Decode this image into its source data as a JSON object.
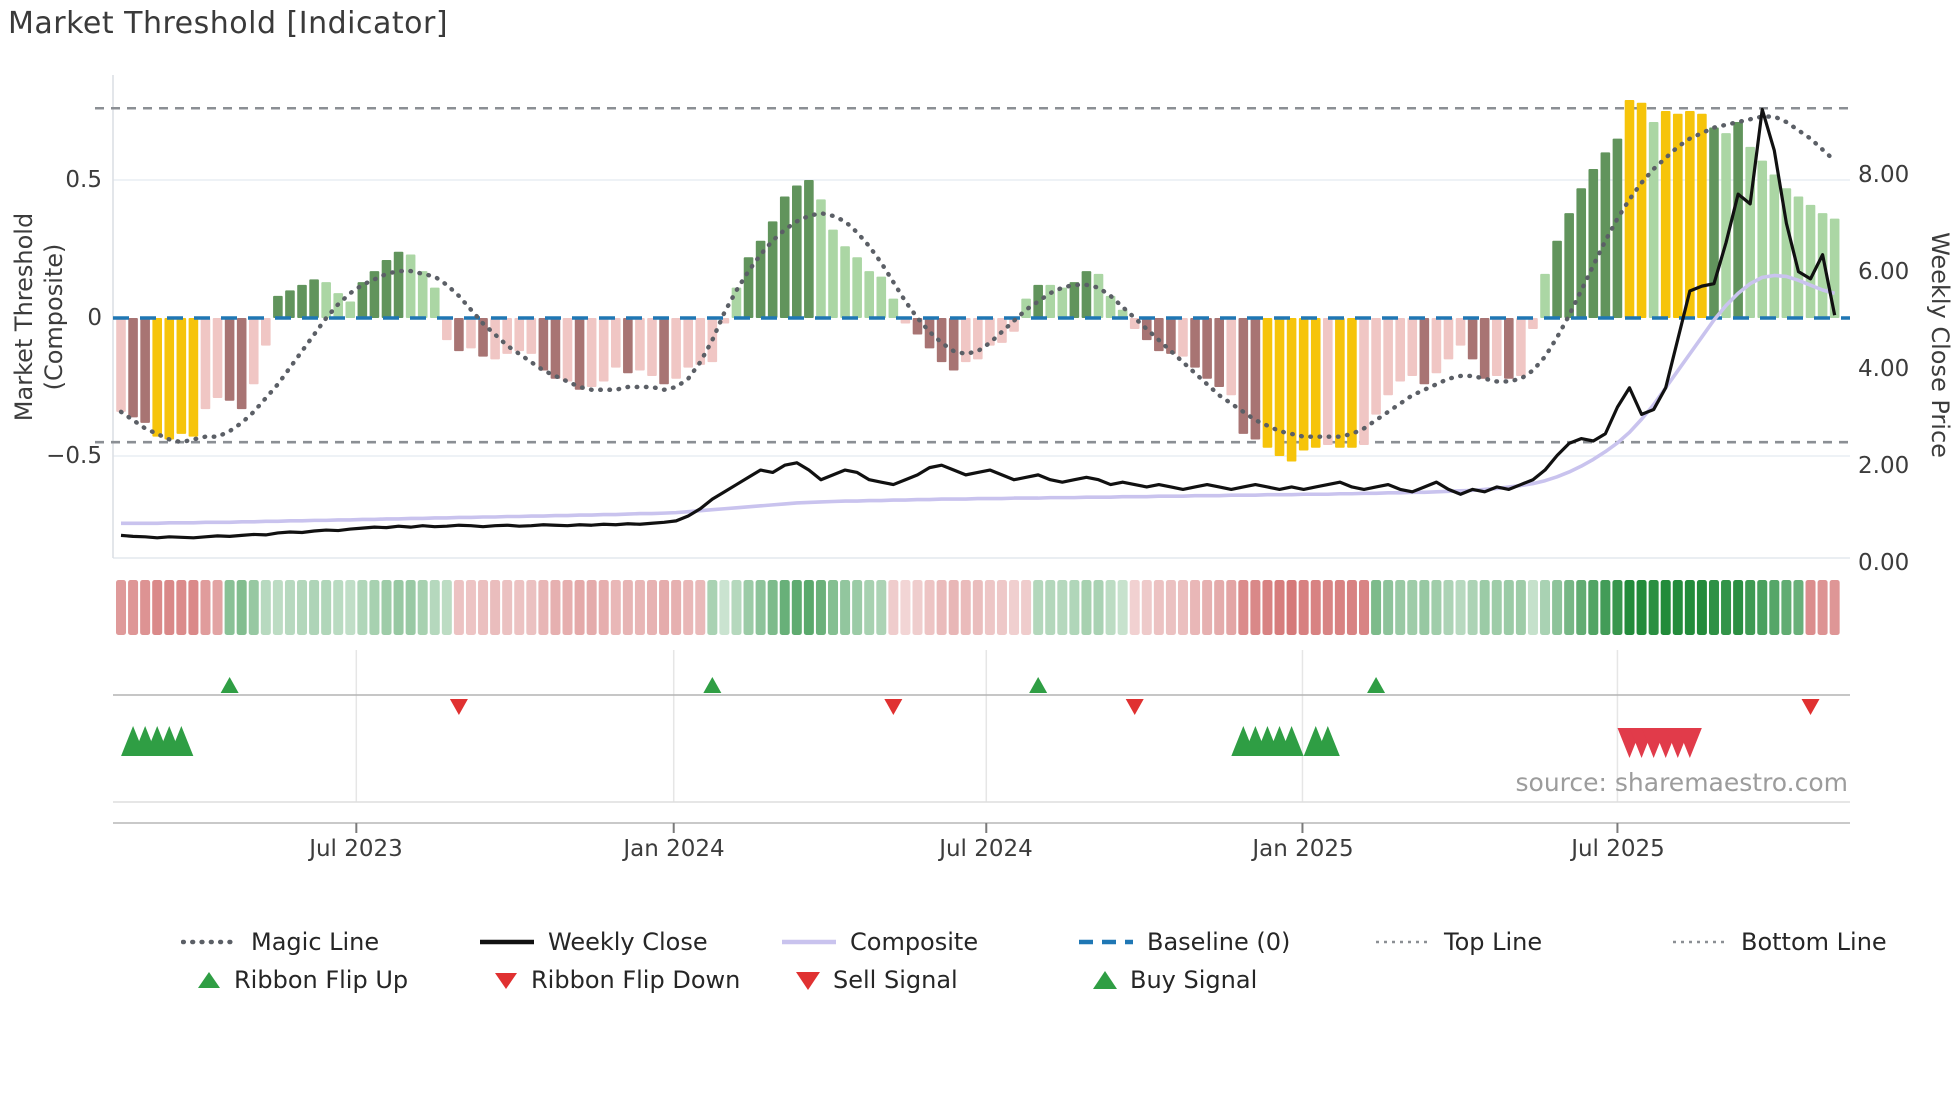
{
  "title": "Market Threshold [Indicator]",
  "source": "source: sharemaestro.com",
  "axes": {
    "left_label": "Market Threshold (Composite)",
    "right_label": "Weekly Close Price",
    "left_ticks": [
      "0.5",
      "0",
      "−0.5"
    ],
    "right_ticks": [
      "8.00",
      "6.00",
      "4.00",
      "2.00",
      "0.00"
    ],
    "x_ticks": [
      "Jul 2023",
      "Jan 2024",
      "Jul 2024",
      "Jan 2025",
      "Jul 2025"
    ]
  },
  "legend": {
    "magic": "Magic Line",
    "weekly": "Weekly Close",
    "composite": "Composite",
    "baseline": "Baseline (0)",
    "top": "Top Line",
    "bottom": "Bottom Line",
    "flip_up": "Ribbon Flip Up",
    "flip_down": "Ribbon Flip Down",
    "sell": "Sell Signal",
    "buy": "Buy Signal"
  },
  "colors": {
    "bar_palette": {
      "p": "#f0c6c4",
      "m": "#a87473",
      "y": "#f6c40a",
      "g": "#61945c",
      "l": "#abd6a4"
    },
    "magic_line": "#5b5f66",
    "weekly_close": "#111111",
    "composite": "#c9c3ee",
    "baseline": "#1f77b4",
    "guide": "#8b8f94",
    "buy": "#2f9e44",
    "sell": "#e03131",
    "ribbon_green": "#228b3a",
    "ribbon_red": "#c65050"
  },
  "chart_data": {
    "type": "bar+line",
    "x_unit": "weeks (one bar per week, Feb 2023 - Nov 2025)",
    "x_tick_labels": [
      "Jul 2023",
      "Jan 2024",
      "Jul 2024",
      "Jan 2025",
      "Jul 2025"
    ],
    "x_tick_weeks": [
      19.5,
      45.8,
      71.7,
      97.9,
      124.0
    ],
    "left_axis": {
      "label": "Market Threshold (Composite)",
      "ticks": [
        0.5,
        0,
        -0.5
      ],
      "range": [
        -0.88,
        0.88
      ]
    },
    "right_axis": {
      "label": "Weekly Close Price",
      "ticks": [
        8,
        6,
        4,
        2,
        0
      ],
      "range": [
        0.08,
        10.05
      ]
    },
    "baseline": 0,
    "top_line": 0.76,
    "bottom_line": -0.45,
    "bars": {
      "name": "Market Threshold histogram",
      "values": [
        -0.34,
        -0.36,
        -0.38,
        -0.43,
        -0.44,
        -0.42,
        -0.43,
        -0.33,
        -0.29,
        -0.3,
        -0.33,
        -0.24,
        -0.1,
        0.08,
        0.1,
        0.12,
        0.14,
        0.13,
        0.09,
        0.06,
        0.13,
        0.17,
        0.21,
        0.24,
        0.23,
        0.17,
        0.11,
        -0.08,
        -0.12,
        -0.11,
        -0.14,
        -0.15,
        -0.13,
        -0.12,
        -0.13,
        -0.19,
        -0.22,
        -0.23,
        -0.26,
        -0.25,
        -0.23,
        -0.18,
        -0.2,
        -0.19,
        -0.21,
        -0.24,
        -0.22,
        -0.18,
        -0.17,
        -0.16,
        -0.02,
        0.11,
        0.22,
        0.28,
        0.35,
        0.44,
        0.48,
        0.5,
        0.43,
        0.32,
        0.26,
        0.22,
        0.17,
        0.15,
        0.07,
        -0.02,
        -0.06,
        -0.11,
        -0.16,
        -0.19,
        -0.16,
        -0.15,
        -0.1,
        -0.09,
        -0.05,
        0.07,
        0.12,
        0.12,
        0.11,
        0.13,
        0.17,
        0.16,
        0.08,
        0.03,
        -0.04,
        -0.08,
        -0.12,
        -0.13,
        -0.14,
        -0.18,
        -0.22,
        -0.25,
        -0.28,
        -0.42,
        -0.44,
        -0.47,
        -0.5,
        -0.52,
        -0.48,
        -0.47,
        -0.46,
        -0.47,
        -0.47,
        -0.46,
        -0.35,
        -0.28,
        -0.23,
        -0.21,
        -0.24,
        -0.2,
        -0.15,
        -0.1,
        -0.15,
        -0.22,
        -0.21,
        -0.22,
        -0.21,
        -0.04,
        0.16,
        0.28,
        0.38,
        0.47,
        0.54,
        0.6,
        0.65,
        0.79,
        0.78,
        0.71,
        0.75,
        0.74,
        0.75,
        0.74,
        0.69,
        0.67,
        0.71,
        0.62,
        0.57,
        0.52,
        0.47,
        0.44,
        0.41,
        0.38,
        0.36
      ],
      "colors": [
        "p",
        "m",
        "m",
        "y",
        "y",
        "y",
        "y",
        "p",
        "p",
        "m",
        "m",
        "p",
        "p",
        "g",
        "g",
        "g",
        "g",
        "l",
        "l",
        "l",
        "g",
        "g",
        "g",
        "g",
        "l",
        "l",
        "l",
        "p",
        "m",
        "p",
        "m",
        "p",
        "p",
        "p",
        "p",
        "m",
        "m",
        "p",
        "m",
        "p",
        "p",
        "p",
        "m",
        "p",
        "p",
        "m",
        "p",
        "p",
        "p",
        "p",
        "p",
        "l",
        "g",
        "g",
        "g",
        "g",
        "g",
        "g",
        "l",
        "l",
        "l",
        "l",
        "l",
        "l",
        "l",
        "p",
        "m",
        "m",
        "m",
        "m",
        "p",
        "p",
        "p",
        "p",
        "p",
        "l",
        "g",
        "l",
        "l",
        "g",
        "g",
        "l",
        "l",
        "l",
        "p",
        "m",
        "m",
        "m",
        "p",
        "m",
        "m",
        "m",
        "p",
        "m",
        "m",
        "y",
        "y",
        "y",
        "y",
        "y",
        "p",
        "y",
        "y",
        "p",
        "p",
        "p",
        "p",
        "p",
        "m",
        "p",
        "p",
        "p",
        "m",
        "m",
        "p",
        "m",
        "p",
        "p",
        "l",
        "g",
        "g",
        "g",
        "g",
        "g",
        "g",
        "y",
        "y",
        "l",
        "y",
        "y",
        "y",
        "y",
        "g",
        "l",
        "g",
        "l",
        "l",
        "l",
        "l",
        "l",
        "l",
        "l",
        "l"
      ]
    },
    "magic_line": [
      -0.34,
      -0.37,
      -0.4,
      -0.42,
      -0.44,
      -0.45,
      -0.44,
      -0.43,
      -0.43,
      -0.41,
      -0.38,
      -0.34,
      -0.29,
      -0.24,
      -0.18,
      -0.12,
      -0.06,
      0.0,
      0.05,
      0.09,
      0.12,
      0.14,
      0.16,
      0.17,
      0.17,
      0.16,
      0.15,
      0.12,
      0.08,
      0.03,
      -0.02,
      -0.06,
      -0.1,
      -0.13,
      -0.16,
      -0.19,
      -0.21,
      -0.23,
      -0.25,
      -0.26,
      -0.26,
      -0.26,
      -0.25,
      -0.25,
      -0.25,
      -0.26,
      -0.25,
      -0.22,
      -0.16,
      -0.08,
      0.02,
      0.1,
      0.17,
      0.23,
      0.28,
      0.32,
      0.35,
      0.37,
      0.38,
      0.37,
      0.35,
      0.31,
      0.26,
      0.2,
      0.13,
      0.06,
      0.0,
      -0.05,
      -0.09,
      -0.12,
      -0.13,
      -0.12,
      -0.09,
      -0.05,
      -0.01,
      0.03,
      0.06,
      0.09,
      0.11,
      0.12,
      0.12,
      0.11,
      0.08,
      0.04,
      0.0,
      -0.04,
      -0.08,
      -0.12,
      -0.16,
      -0.2,
      -0.24,
      -0.28,
      -0.31,
      -0.34,
      -0.37,
      -0.39,
      -0.41,
      -0.42,
      -0.43,
      -0.43,
      -0.43,
      -0.43,
      -0.42,
      -0.4,
      -0.37,
      -0.34,
      -0.31,
      -0.28,
      -0.26,
      -0.24,
      -0.22,
      -0.21,
      -0.21,
      -0.22,
      -0.23,
      -0.23,
      -0.22,
      -0.19,
      -0.14,
      -0.07,
      0.01,
      0.1,
      0.19,
      0.28,
      0.36,
      0.43,
      0.49,
      0.54,
      0.58,
      0.62,
      0.65,
      0.67,
      0.69,
      0.7,
      0.71,
      0.72,
      0.73,
      0.73,
      0.71,
      0.68,
      0.65,
      0.61,
      0.57
    ],
    "weekly_close": [
      0.55,
      0.53,
      0.52,
      0.5,
      0.52,
      0.51,
      0.5,
      0.52,
      0.54,
      0.53,
      0.55,
      0.57,
      0.56,
      0.6,
      0.62,
      0.61,
      0.64,
      0.66,
      0.65,
      0.68,
      0.7,
      0.72,
      0.71,
      0.74,
      0.72,
      0.75,
      0.73,
      0.74,
      0.76,
      0.75,
      0.73,
      0.75,
      0.76,
      0.74,
      0.75,
      0.77,
      0.76,
      0.75,
      0.77,
      0.76,
      0.78,
      0.77,
      0.79,
      0.78,
      0.8,
      0.82,
      0.85,
      0.95,
      1.1,
      1.3,
      1.45,
      1.6,
      1.75,
      1.9,
      1.85,
      2.0,
      2.05,
      1.9,
      1.7,
      1.8,
      1.9,
      1.85,
      1.7,
      1.65,
      1.6,
      1.7,
      1.8,
      1.95,
      2.0,
      1.9,
      1.8,
      1.85,
      1.9,
      1.8,
      1.7,
      1.75,
      1.8,
      1.7,
      1.65,
      1.7,
      1.75,
      1.7,
      1.6,
      1.65,
      1.6,
      1.55,
      1.6,
      1.55,
      1.5,
      1.55,
      1.6,
      1.55,
      1.5,
      1.55,
      1.6,
      1.55,
      1.5,
      1.55,
      1.5,
      1.55,
      1.6,
      1.65,
      1.55,
      1.5,
      1.55,
      1.6,
      1.5,
      1.45,
      1.55,
      1.65,
      1.5,
      1.4,
      1.5,
      1.45,
      1.55,
      1.5,
      1.6,
      1.7,
      1.9,
      2.2,
      2.45,
      2.55,
      2.5,
      2.65,
      3.2,
      3.6,
      3.05,
      3.15,
      3.6,
      4.6,
      5.6,
      5.7,
      5.75,
      6.6,
      7.6,
      7.4,
      9.35,
      8.5,
      7.0,
      6.0,
      5.85,
      6.35,
      5.1
    ],
    "composite": [
      0.8,
      0.8,
      0.8,
      0.8,
      0.81,
      0.81,
      0.81,
      0.82,
      0.82,
      0.82,
      0.83,
      0.83,
      0.84,
      0.84,
      0.85,
      0.85,
      0.86,
      0.86,
      0.87,
      0.87,
      0.88,
      0.88,
      0.89,
      0.89,
      0.9,
      0.9,
      0.91,
      0.91,
      0.92,
      0.92,
      0.93,
      0.93,
      0.94,
      0.94,
      0.95,
      0.95,
      0.96,
      0.96,
      0.97,
      0.97,
      0.98,
      0.98,
      0.99,
      1.0,
      1.0,
      1.01,
      1.02,
      1.04,
      1.06,
      1.08,
      1.1,
      1.12,
      1.14,
      1.16,
      1.18,
      1.2,
      1.22,
      1.23,
      1.24,
      1.25,
      1.26,
      1.26,
      1.27,
      1.27,
      1.28,
      1.28,
      1.29,
      1.29,
      1.3,
      1.3,
      1.3,
      1.31,
      1.31,
      1.31,
      1.32,
      1.32,
      1.32,
      1.33,
      1.33,
      1.33,
      1.34,
      1.34,
      1.34,
      1.35,
      1.35,
      1.35,
      1.36,
      1.36,
      1.36,
      1.37,
      1.37,
      1.37,
      1.38,
      1.38,
      1.38,
      1.39,
      1.39,
      1.39,
      1.4,
      1.4,
      1.4,
      1.41,
      1.41,
      1.42,
      1.42,
      1.43,
      1.43,
      1.44,
      1.44,
      1.45,
      1.46,
      1.47,
      1.48,
      1.5,
      1.52,
      1.55,
      1.58,
      1.62,
      1.68,
      1.76,
      1.86,
      1.98,
      2.12,
      2.28,
      2.46,
      2.68,
      2.95,
      3.25,
      3.6,
      3.95,
      4.3,
      4.65,
      5.0,
      5.3,
      5.55,
      5.75,
      5.88,
      5.92,
      5.9,
      5.82,
      5.72,
      5.62,
      5.55
    ],
    "ribbon_segments": [
      {
        "start": 0,
        "end": 8,
        "sign": -1
      },
      {
        "start": 9,
        "end": 27,
        "sign": 1
      },
      {
        "start": 28,
        "end": 48,
        "sign": -1
      },
      {
        "start": 49,
        "end": 63,
        "sign": 1
      },
      {
        "start": 64,
        "end": 75,
        "sign": -1
      },
      {
        "start": 76,
        "end": 83,
        "sign": 1
      },
      {
        "start": 84,
        "end": 103,
        "sign": -1
      },
      {
        "start": 104,
        "end": 139,
        "sign": 1
      },
      {
        "start": 140,
        "end": 142,
        "sign": -1
      }
    ],
    "signals": {
      "ribbon_flip_up_weeks": [
        9,
        49,
        76,
        104
      ],
      "ribbon_flip_down_weeks": [
        28,
        64,
        84,
        140
      ],
      "buy_signal_weeks": [
        1,
        2,
        3,
        4,
        5,
        93,
        94,
        95,
        96,
        97,
        99,
        100
      ],
      "sell_signal_weeks": [
        125,
        126,
        127,
        128,
        129,
        130
      ]
    }
  }
}
